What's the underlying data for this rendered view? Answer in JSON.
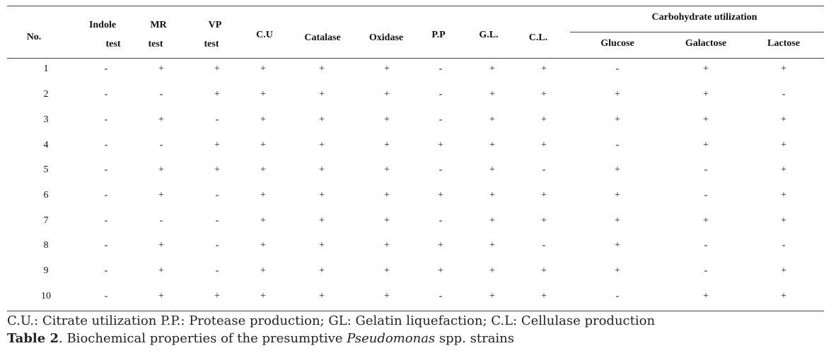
{
  "table": {
    "headers": {
      "no": "No.",
      "indole_1": "Indole",
      "indole_2": "test",
      "mr_1": "MR",
      "mr_2": "test",
      "vp_1": "VP",
      "vp_2": "test",
      "cu": "C.U",
      "catalase": "Catalase",
      "oxidase": "Oxidase",
      "pp": "P.P",
      "gl": "G.L.",
      "cl": "C.L.",
      "carb_group": "Carbohydrate utilization",
      "glucose": "Glucose",
      "galactose": "Galactose",
      "lactose": "Lactose"
    },
    "rows": [
      [
        "1",
        "-",
        "+",
        "+",
        "+",
        "+",
        "+",
        "-",
        "+",
        "+",
        "-",
        "+",
        "+"
      ],
      [
        "2",
        "-",
        "-",
        "+",
        "+",
        "+",
        "+",
        "-",
        "+",
        "+",
        "+",
        "+",
        "-"
      ],
      [
        "3",
        "-",
        "+",
        "-",
        "+",
        "+",
        "+",
        "-",
        "+",
        "+",
        "+",
        "+",
        "+"
      ],
      [
        "4",
        "-",
        "-",
        "+",
        "+",
        "+",
        "+",
        "+",
        "+",
        "+",
        "-",
        "+",
        "+"
      ],
      [
        "5",
        "-",
        "+",
        "+",
        "+",
        "+",
        "+",
        "-",
        "+",
        "-",
        "+",
        "-",
        "+"
      ],
      [
        "6",
        "-",
        "+",
        "-",
        "+",
        "+",
        "+",
        "+",
        "+",
        "+",
        "+",
        "-",
        "+"
      ],
      [
        "7",
        "-",
        "-",
        "-",
        "+",
        "+",
        "+",
        "-",
        "+",
        "+",
        "+",
        "+",
        "+"
      ],
      [
        "8",
        "-",
        "+",
        "-",
        "+",
        "+",
        "+",
        "+",
        "+",
        "-",
        "+",
        "-",
        "-"
      ],
      [
        "9",
        "-",
        "+",
        "-",
        "+",
        "+",
        "+",
        "+",
        "+",
        "+",
        "+",
        "-",
        "+"
      ],
      [
        "10",
        "-",
        "+",
        "+",
        "+",
        "+",
        "+",
        "-",
        "+",
        "+",
        "-",
        "+",
        "+"
      ]
    ]
  },
  "footnote": "C.U.: Citrate utilization P.P.: Protease production; GL: Gelatin liquefaction; C.L: Cellulase production",
  "caption": {
    "label": "Table 2",
    "text_before": ". Biochemical properties of the presumptive ",
    "italic": "Pseudomonas",
    "text_after": " spp. strains"
  }
}
